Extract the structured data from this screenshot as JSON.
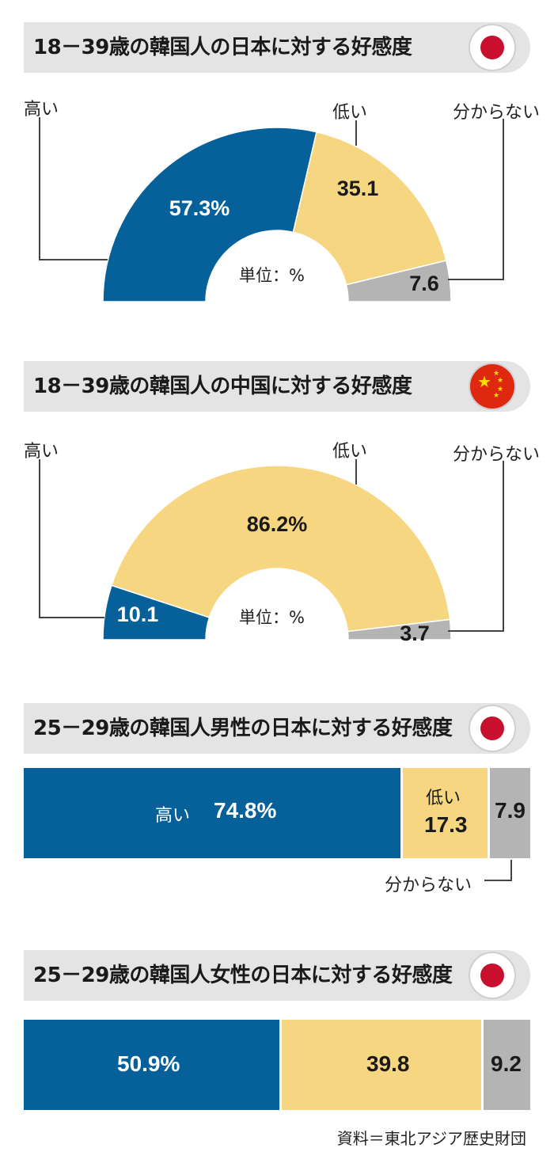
{
  "colors": {
    "high": "#06609a",
    "low": "#f6d680",
    "unknown": "#b4b4b4"
  },
  "chart_data": [
    {
      "type": "pie",
      "shape": "half-donut",
      "title": "18－39歳の韓国人の日本に対する好感度",
      "flag": "japan-flag-icon",
      "unit_label": "単位：%",
      "categories": [
        "高い",
        "低い",
        "分からない"
      ],
      "values": [
        57.3,
        35.1,
        7.6
      ],
      "value_labels": [
        "57.3%",
        "35.1",
        "7.6"
      ]
    },
    {
      "type": "pie",
      "shape": "half-donut",
      "title": "18－39歳の韓国人の中国に対する好感度",
      "flag": "china-flag-icon",
      "unit_label": "単位：%",
      "categories": [
        "高い",
        "低い",
        "分からない"
      ],
      "values": [
        10.1,
        86.2,
        3.7
      ],
      "value_labels": [
        "10.1",
        "86.2%",
        "3.7"
      ]
    },
    {
      "type": "bar",
      "orientation": "horizontal-stacked",
      "title": "25－29歳の韓国人男性の日本に対する好感度",
      "flag": "japan-flag-icon",
      "categories": [
        "高い",
        "低い",
        "分からない"
      ],
      "values": [
        74.8,
        17.3,
        7.9
      ],
      "value_labels": [
        "74.8%",
        "17.3",
        "7.9"
      ]
    },
    {
      "type": "bar",
      "orientation": "horizontal-stacked",
      "title": "25－29歳の韓国人女性の日本に対する好感度",
      "flag": "japan-flag-icon",
      "categories": [
        "高い",
        "低い",
        "分からない"
      ],
      "values": [
        50.9,
        39.8,
        9.2
      ],
      "value_labels": [
        "50.9%",
        "39.8",
        "9.2"
      ]
    }
  ],
  "source": "資料＝東北アジア歴史財団"
}
